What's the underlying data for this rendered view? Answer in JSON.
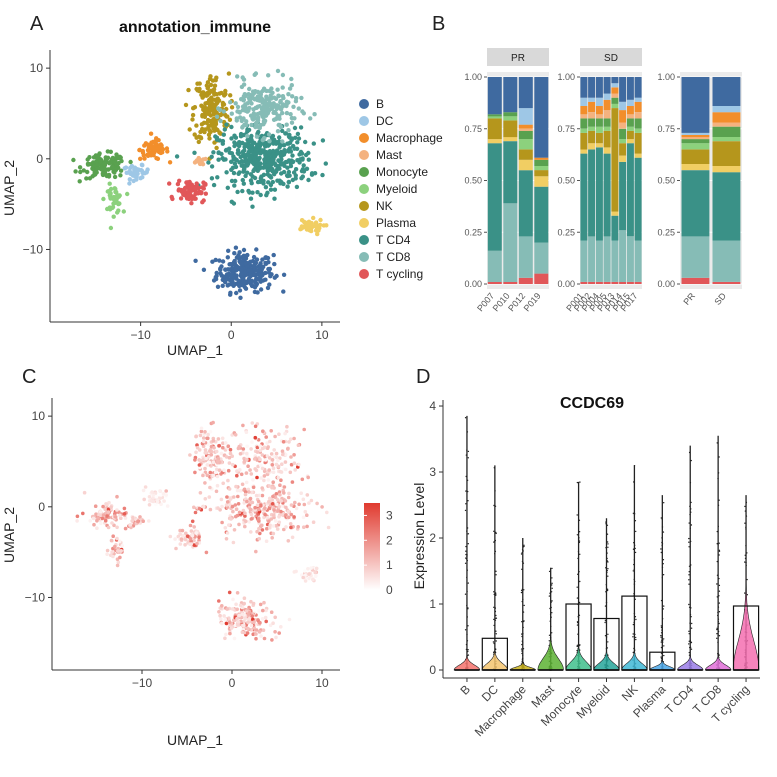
{
  "figure": {
    "panel_letters": [
      "A",
      "B",
      "C",
      "D"
    ]
  },
  "chart_data": [
    {
      "id": "A",
      "type": "scatter",
      "title": "annotation_immune",
      "xlabel": "UMAP_1",
      "ylabel": "UMAP_2",
      "xlim": [
        -20,
        12
      ],
      "ylim": [
        -18,
        12
      ],
      "xticks": [
        -10,
        0,
        10
      ],
      "yticks": [
        -10,
        0,
        10
      ],
      "xtick_labels": [
        "−10",
        "0",
        "10"
      ],
      "ytick_labels": [
        "−10",
        "0",
        "10"
      ],
      "legend_position": "right",
      "clusters": [
        {
          "name": "B",
          "color": "#3f6aa0",
          "center": [
            1.5,
            -12.5
          ],
          "spread": [
            2.6,
            1.8
          ],
          "n": 260
        },
        {
          "name": "DC",
          "color": "#9ec7e6",
          "center": [
            -10.5,
            -1.5
          ],
          "spread": [
            1.2,
            0.6
          ],
          "n": 40
        },
        {
          "name": "Macrophage",
          "color": "#f28e2b",
          "center": [
            -8.5,
            1.0
          ],
          "spread": [
            1.3,
            0.9
          ],
          "n": 70
        },
        {
          "name": "Mast",
          "color": "#f4b27f",
          "center": [
            -3.5,
            -0.3
          ],
          "spread": [
            0.7,
            0.3
          ],
          "n": 15
        },
        {
          "name": "Monocyte",
          "color": "#59a14f",
          "center": [
            -14.0,
            -0.8
          ],
          "spread": [
            2.0,
            1.1
          ],
          "n": 120
        },
        {
          "name": "Myeloid",
          "color": "#8cd17d",
          "center": [
            -13.0,
            -4.5
          ],
          "spread": [
            0.8,
            1.3
          ],
          "n": 45
        },
        {
          "name": "NK",
          "color": "#b5961c",
          "center": [
            -2.2,
            5.5
          ],
          "spread": [
            1.6,
            3.2
          ],
          "n": 180
        },
        {
          "name": "Plasma",
          "color": "#f1ce63",
          "center": [
            8.5,
            -7.5
          ],
          "spread": [
            1.4,
            0.7
          ],
          "n": 45
        },
        {
          "name": "T CD4",
          "color": "#3a9187",
          "center": [
            3.5,
            0.0
          ],
          "spread": [
            4.2,
            2.8
          ],
          "n": 420
        },
        {
          "name": "T CD8",
          "color": "#86bcb6",
          "center": [
            3.5,
            5.5
          ],
          "spread": [
            3.2,
            2.4
          ],
          "n": 220
        },
        {
          "name": "T cycling",
          "color": "#e15759",
          "center": [
            -4.5,
            -3.5
          ],
          "spread": [
            1.3,
            1.0
          ],
          "n": 80
        }
      ]
    },
    {
      "id": "B",
      "type": "bar",
      "stacked": true,
      "yticks": [
        0,
        0.25,
        0.5,
        0.75,
        1.0
      ],
      "ytick_labels": [
        "0.00",
        "0.25",
        "0.50",
        "0.75",
        "1.00"
      ],
      "ylim": [
        0,
        1
      ],
      "stack_order_bottom_to_top": [
        "T cycling",
        "T CD8",
        "T CD4",
        "Plasma",
        "NK",
        "Myeloid",
        "Monocyte",
        "Mast",
        "Macrophage",
        "DC",
        "B"
      ],
      "colors": {
        "B": "#3f6aa0",
        "DC": "#9ec7e6",
        "Macrophage": "#f28e2b",
        "Mast": "#f4b27f",
        "Monocyte": "#59a14f",
        "Myeloid": "#8cd17d",
        "NK": "#b5961c",
        "Plasma": "#f1ce63",
        "T CD4": "#3a9187",
        "T CD8": "#86bcb6",
        "T cycling": "#e15759"
      },
      "facets": [
        {
          "strip": "PR",
          "categories": [
            "P007",
            "P010",
            "P012",
            "P019"
          ],
          "values": {
            "T cycling": [
              0.01,
              0.01,
              0.03,
              0.05
            ],
            "T CD8": [
              0.15,
              0.38,
              0.2,
              0.15
            ],
            "T CD4": [
              0.52,
              0.3,
              0.32,
              0.27
            ],
            "Plasma": [
              0.02,
              0.02,
              0.05,
              0.05
            ],
            "NK": [
              0.1,
              0.08,
              0.05,
              0.03
            ],
            "Myeloid": [
              0.01,
              0.02,
              0.05,
              0.02
            ],
            "Monocyte": [
              0.01,
              0.02,
              0.04,
              0.03
            ],
            "Mast": [
              0.0,
              0.0,
              0.01,
              0.0
            ],
            "Macrophage": [
              0.0,
              0.0,
              0.02,
              0.01
            ],
            "DC": [
              0.0,
              0.0,
              0.08,
              0.0
            ],
            "B": [
              0.18,
              0.17,
              0.15,
              0.39
            ]
          }
        },
        {
          "strip": "SD",
          "categories": [
            "P001",
            "P002",
            "P004",
            "P005",
            "P013",
            "P014",
            "P015",
            "P017"
          ],
          "values": {
            "T cycling": [
              0.01,
              0.01,
              0.01,
              0.01,
              0.01,
              0.01,
              0.01,
              0.01
            ],
            "T CD8": [
              0.2,
              0.22,
              0.2,
              0.22,
              0.2,
              0.25,
              0.22,
              0.2
            ],
            "T CD4": [
              0.42,
              0.42,
              0.45,
              0.4,
              0.12,
              0.33,
              0.45,
              0.4
            ],
            "Plasma": [
              0.02,
              0.03,
              0.02,
              0.03,
              0.02,
              0.03,
              0.02,
              0.02
            ],
            "NK": [
              0.08,
              0.06,
              0.05,
              0.08,
              0.5,
              0.06,
              0.04,
              0.1
            ],
            "Myeloid": [
              0.02,
              0.02,
              0.03,
              0.02,
              0.02,
              0.02,
              0.02,
              0.02
            ],
            "Monocyte": [
              0.05,
              0.04,
              0.04,
              0.04,
              0.03,
              0.05,
              0.04,
              0.05
            ],
            "Mast": [
              0.02,
              0.03,
              0.02,
              0.04,
              0.02,
              0.03,
              0.02,
              0.03
            ],
            "Macrophage": [
              0.04,
              0.05,
              0.04,
              0.05,
              0.03,
              0.06,
              0.04,
              0.05
            ],
            "DC": [
              0.04,
              0.02,
              0.04,
              0.03,
              0.02,
              0.04,
              0.03,
              0.02
            ],
            "B": [
              0.1,
              0.1,
              0.1,
              0.08,
              0.03,
              0.12,
              0.11,
              0.1
            ]
          }
        },
        {
          "strip": "",
          "categories": [
            "PR",
            "SD"
          ],
          "values": {
            "T cycling": [
              0.03,
              0.01
            ],
            "T CD8": [
              0.2,
              0.2
            ],
            "T CD4": [
              0.32,
              0.33
            ],
            "Plasma": [
              0.03,
              0.03
            ],
            "NK": [
              0.07,
              0.12
            ],
            "Myeloid": [
              0.03,
              0.02
            ],
            "Monocyte": [
              0.02,
              0.05
            ],
            "Mast": [
              0.01,
              0.02
            ],
            "Macrophage": [
              0.01,
              0.05
            ],
            "DC": [
              0.01,
              0.03
            ],
            "B": [
              0.27,
              0.14
            ]
          }
        }
      ]
    },
    {
      "id": "C",
      "type": "scatter",
      "xlabel": "UMAP_1",
      "ylabel": "UMAP_2",
      "xlim": [
        -20,
        12
      ],
      "ylim": [
        -18,
        12
      ],
      "xticks": [
        -10,
        0,
        10
      ],
      "yticks": [
        -10,
        0,
        10
      ],
      "xtick_labels": [
        "−10",
        "0",
        "10"
      ],
      "ytick_labels": [
        "−10",
        "0",
        "10"
      ],
      "colorbar": {
        "min": 0,
        "max": 3.5,
        "ticks": [
          0,
          1,
          2,
          3
        ],
        "tick_labels": [
          "0",
          "1",
          "2",
          "3"
        ],
        "low": "#ffffff",
        "high": "#e03a2f"
      }
    },
    {
      "id": "D",
      "type": "violin",
      "title": "CCDC69",
      "ylabel": "Expression Level",
      "ylim": [
        0,
        4
      ],
      "yticks": [
        0,
        1,
        2,
        3,
        4
      ],
      "ytick_labels": [
        "0",
        "1",
        "2",
        "3",
        "4"
      ],
      "categories": [
        "B",
        "DC",
        "Macrophage",
        "Mast",
        "Monocyte",
        "Myeloid",
        "NK",
        "Plasma",
        "T CD4",
        "T CD8",
        "T cycling"
      ],
      "colors": [
        "#f4726c",
        "#f5c46f",
        "#c9b11a",
        "#5cb233",
        "#3fbf8c",
        "#26a69a",
        "#3fb8d6",
        "#4aa6e6",
        "#9a7de6",
        "#e06fd8",
        "#f46fb0"
      ],
      "max_values": [
        3.85,
        3.1,
        2.0,
        1.55,
        2.85,
        2.3,
        3.1,
        2.65,
        3.4,
        3.55,
        2.65
      ],
      "box_upper": [
        0.0,
        0.48,
        0.0,
        0.0,
        1.0,
        0.78,
        1.12,
        0.27,
        0.0,
        0.0,
        0.97
      ],
      "violin_peak_height": [
        0.15,
        0.2,
        0.08,
        0.35,
        0.25,
        0.2,
        0.2,
        0.1,
        0.15,
        0.15,
        0.9
      ]
    }
  ]
}
